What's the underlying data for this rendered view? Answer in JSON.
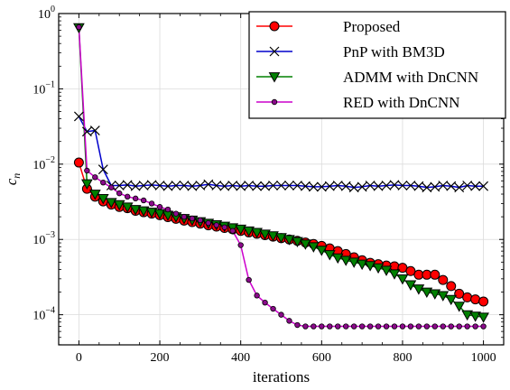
{
  "chart_data": {
    "type": "line",
    "title": "",
    "xlabel": "iterations",
    "ylabel_base": "c",
    "ylabel_sub": "n",
    "yscale": "log",
    "xlim": [
      -50,
      1050
    ],
    "ylim_exponents": [
      -4.4,
      0
    ],
    "x_ticks": [
      {
        "value": 0,
        "label": "0"
      },
      {
        "value": 200,
        "label": "200"
      },
      {
        "value": 400,
        "label": "400"
      },
      {
        "value": 600,
        "label": "600"
      },
      {
        "value": 800,
        "label": "800"
      },
      {
        "value": 1000,
        "label": "1000"
      }
    ],
    "y_ticks": [
      {
        "exp": 0,
        "base": "10",
        "sup": "0"
      },
      {
        "exp": -1,
        "base": "10",
        "sup": "−1"
      },
      {
        "exp": -2,
        "base": "10",
        "sup": "−2"
      },
      {
        "exp": -3,
        "base": "10",
        "sup": "−3"
      },
      {
        "exp": -4,
        "base": "10",
        "sup": "−4"
      }
    ],
    "grid": true,
    "legend_position": "top-right",
    "series": [
      {
        "name": "Proposed",
        "color": "#ff0000",
        "line_color": "#ff0000",
        "marker": "circle",
        "x": [
          0,
          20,
          40,
          60,
          80,
          100,
          120,
          140,
          160,
          180,
          200,
          220,
          240,
          260,
          280,
          300,
          320,
          340,
          360,
          380,
          400,
          420,
          440,
          460,
          480,
          500,
          520,
          540,
          560,
          580,
          600,
          620,
          640,
          660,
          680,
          700,
          720,
          740,
          760,
          780,
          800,
          820,
          840,
          860,
          880,
          900,
          920,
          940,
          960,
          980,
          1000
        ],
        "y": [
          0.0105,
          0.0047,
          0.0037,
          0.0032,
          0.0029,
          0.0027,
          0.0026,
          0.0024,
          0.0023,
          0.0022,
          0.0021,
          0.00198,
          0.00188,
          0.00178,
          0.0017,
          0.00162,
          0.00154,
          0.00148,
          0.00142,
          0.00136,
          0.0013,
          0.00124,
          0.00119,
          0.00114,
          0.00109,
          0.00104,
          0.001,
          0.00096,
          0.00091,
          0.00087,
          0.00082,
          0.00076,
          0.0007,
          0.00064,
          0.00058,
          0.00053,
          0.00049,
          0.00047,
          0.00045,
          0.00044,
          0.00042,
          0.00038,
          0.00034,
          0.00034,
          0.00034,
          0.00029,
          0.00024,
          0.00019,
          0.00017,
          0.00016,
          0.00015
        ]
      },
      {
        "name": "PnP with BM3D",
        "color": "#0000ff",
        "line_color": "#0000cc",
        "marker": "x",
        "x": [
          0,
          20,
          40,
          60,
          80,
          100,
          120,
          140,
          160,
          180,
          200,
          220,
          240,
          260,
          280,
          300,
          320,
          340,
          360,
          380,
          400,
          420,
          440,
          460,
          480,
          500,
          520,
          540,
          560,
          580,
          600,
          620,
          640,
          660,
          680,
          700,
          720,
          740,
          760,
          780,
          800,
          820,
          840,
          860,
          880,
          900,
          920,
          940,
          960,
          980,
          1000
        ],
        "y": [
          0.043,
          0.027,
          0.028,
          0.0085,
          0.0052,
          0.0052,
          0.0053,
          0.0051,
          0.0052,
          0.0053,
          0.0052,
          0.0051,
          0.0052,
          0.0052,
          0.0051,
          0.0052,
          0.0054,
          0.0052,
          0.0051,
          0.0052,
          0.0051,
          0.0052,
          0.0051,
          0.0051,
          0.0052,
          0.0052,
          0.0052,
          0.0052,
          0.0051,
          0.005,
          0.005,
          0.0051,
          0.0052,
          0.0051,
          0.0049,
          0.005,
          0.0052,
          0.0051,
          0.0052,
          0.0053,
          0.0052,
          0.0052,
          0.0051,
          0.0049,
          0.005,
          0.0052,
          0.0051,
          0.0049,
          0.0052,
          0.0051,
          0.0051
        ]
      },
      {
        "name": "ADMM with DnCNN",
        "color": "#008000",
        "line_color": "#008000",
        "marker": "triangle-down",
        "x": [
          0,
          20,
          40,
          60,
          80,
          100,
          120,
          140,
          160,
          180,
          200,
          220,
          240,
          260,
          280,
          300,
          320,
          340,
          360,
          380,
          400,
          420,
          440,
          460,
          480,
          500,
          520,
          540,
          560,
          580,
          600,
          620,
          640,
          660,
          680,
          700,
          720,
          740,
          760,
          780,
          800,
          820,
          840,
          860,
          880,
          900,
          920,
          940,
          960,
          980,
          1000
        ],
        "y": [
          0.65,
          0.0055,
          0.004,
          0.0035,
          0.0031,
          0.0029,
          0.0027,
          0.0025,
          0.0024,
          0.0023,
          0.0022,
          0.0021,
          0.002,
          0.0019,
          0.00181,
          0.00172,
          0.00164,
          0.00157,
          0.0015,
          0.00143,
          0.00137,
          0.0013,
          0.00124,
          0.00118,
          0.00112,
          0.00106,
          0.001,
          0.00094,
          0.00087,
          0.0008,
          0.00072,
          0.00063,
          0.00057,
          0.00053,
          0.0005,
          0.00047,
          0.00045,
          0.00042,
          0.00039,
          0.00035,
          0.0003,
          0.00025,
          0.00022,
          0.0002,
          0.00019,
          0.00018,
          0.00016,
          0.00013,
          0.0001,
          9.6e-05,
          9.3e-05
        ]
      },
      {
        "name": "RED with DnCNN",
        "color": "#8b0a8b",
        "line_color": "#cc00cc",
        "marker": "small-circle",
        "x": [
          0,
          20,
          40,
          60,
          80,
          100,
          120,
          140,
          160,
          180,
          200,
          220,
          240,
          260,
          280,
          300,
          320,
          340,
          360,
          380,
          400,
          420,
          440,
          460,
          480,
          500,
          520,
          540,
          560,
          580,
          600,
          620,
          640,
          660,
          680,
          700,
          720,
          740,
          760,
          780,
          800,
          820,
          840,
          860,
          880,
          900,
          920,
          940,
          960,
          980,
          1000
        ],
        "y": [
          0.66,
          0.0082,
          0.0067,
          0.0057,
          0.0049,
          0.0041,
          0.0037,
          0.0035,
          0.0033,
          0.003,
          0.0027,
          0.0025,
          0.0022,
          0.002,
          0.0019,
          0.0018,
          0.00165,
          0.00155,
          0.00145,
          0.0013,
          0.00084,
          0.00029,
          0.00018,
          0.000145,
          0.00012,
          0.0001,
          8.3e-05,
          7.3e-05,
          7e-05,
          7e-05,
          7e-05,
          7e-05,
          7e-05,
          7e-05,
          7e-05,
          7e-05,
          7e-05,
          7e-05,
          7e-05,
          7e-05,
          7e-05,
          7e-05,
          7e-05,
          7e-05,
          7e-05,
          7e-05,
          7e-05,
          7e-05,
          7e-05,
          7e-05,
          7e-05
        ]
      }
    ]
  }
}
